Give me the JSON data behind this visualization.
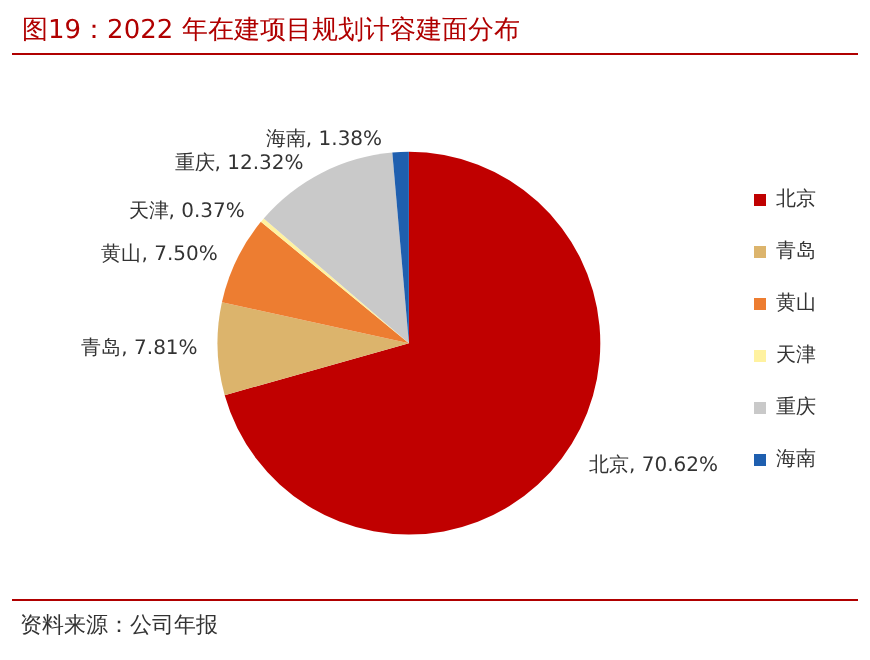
{
  "chart_data": {
    "type": "pie",
    "title": "图19：2022 年在建项目规划计容建面分布",
    "categories": [
      "北京",
      "青岛",
      "黄山",
      "天津",
      "重庆",
      "海南"
    ],
    "values": [
      70.62,
      7.81,
      7.5,
      0.37,
      12.32,
      1.38
    ],
    "value_labels": [
      "北京, 70.62%",
      "青岛, 7.81%",
      "黄山, 7.50%",
      "天津, 0.37%",
      "重庆, 12.32%",
      "海南, 1.38%"
    ],
    "colors": [
      "#c00000",
      "#dcb46c",
      "#ed7d31",
      "#fff2a0",
      "#c9c9c9",
      "#1f5faf"
    ],
    "legend": "right",
    "annotations": [
      "资料来源：公司年报"
    ]
  }
}
